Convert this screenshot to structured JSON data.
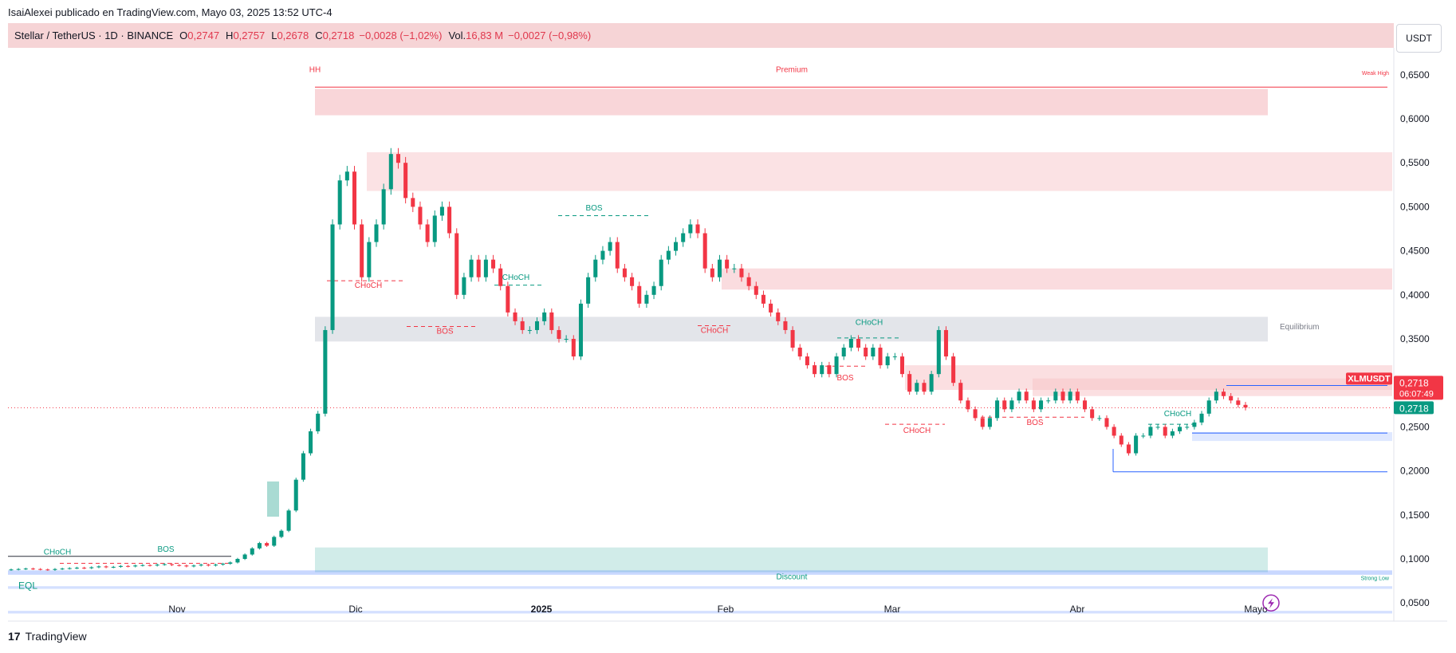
{
  "header": {
    "published": "IsaiAlexei publicado en TradingView.com, Mayo 03, 2025 13:52 UTC-4"
  },
  "legend": {
    "symbol": "Stellar / TetherUS · 1D · BINANCE",
    "o_label": "O",
    "o_value": "0,2747",
    "h_label": "H",
    "h_value": "0,2757",
    "l_label": "L",
    "l_value": "0,2678",
    "c_label": "C",
    "c_value": "0,2718",
    "change": "−0,0028 (−1,02%)",
    "vol_label": "Vol.",
    "vol_value": "16,83 M",
    "vol_change": "−0,0027 (−0,98%)"
  },
  "currency": "USDT",
  "footer": {
    "brand": "TradingView",
    "logo": "17"
  },
  "colors": {
    "up": "#089981",
    "down": "#f23645",
    "premium": "#f7c5c9",
    "discount": "#b2dfdb",
    "equilibrium": "#d1d4dc",
    "line_blue": "#2962ff"
  },
  "chart_data": {
    "type": "candlestick",
    "symbol": "XLMUSDT",
    "x_ticks": [
      "Nov",
      "Dic",
      "2025",
      "Feb",
      "Mar",
      "Abr",
      "Mayo"
    ],
    "y_ticks": [
      "0,0500",
      "0,1000",
      "0,1500",
      "0,2000",
      "0,2500",
      "0,3000",
      "0,3500",
      "0,4000",
      "0,4500",
      "0,5000",
      "0,5500",
      "0,6000",
      "0,6500"
    ],
    "ylim": [
      0.025,
      0.665
    ],
    "last_price": "0,2718",
    "countdown": "06:07:49",
    "price_label": "0,2718",
    "annotations": [
      {
        "text": "HH",
        "color": "#f23645"
      },
      {
        "text": "Premium",
        "color": "#f23645"
      },
      {
        "text": "Weak High",
        "color": "#f23645"
      },
      {
        "text": "Equilibrium",
        "color": "#787b86"
      },
      {
        "text": "Discount",
        "color": "#089981"
      },
      {
        "text": "Strong Low",
        "color": "#089981"
      },
      {
        "text": "EQL",
        "color": "#089981"
      },
      {
        "text": "CHoCH",
        "color": "#089981"
      },
      {
        "text": "BOS",
        "color": "#089981"
      },
      {
        "text": "CHoCH",
        "color": "#f23645"
      },
      {
        "text": "BOS",
        "color": "#f23645"
      },
      {
        "text": "CHoCH",
        "color": "#089981"
      },
      {
        "text": "BOS",
        "color": "#089981"
      },
      {
        "text": "CHoCH",
        "color": "#f23645"
      },
      {
        "text": "BOS",
        "color": "#f23645"
      },
      {
        "text": "CHoCH",
        "color": "#089981"
      },
      {
        "text": "CHoCH",
        "color": "#f23645"
      },
      {
        "text": "BOS",
        "color": "#f23645"
      },
      {
        "text": "CHoCH",
        "color": "#089981"
      }
    ],
    "candles_close": [
      0.088,
      0.0885,
      0.089,
      0.0885,
      0.088,
      0.0875,
      0.0885,
      0.089,
      0.0895,
      0.09,
      0.0895,
      0.0905,
      0.0915,
      0.0905,
      0.091,
      0.092,
      0.0915,
      0.0925,
      0.093,
      0.0925,
      0.0935,
      0.094,
      0.093,
      0.0925,
      0.0915,
      0.0925,
      0.0935,
      0.0925,
      0.0935,
      0.0945,
      0.096,
      0.1,
      0.105,
      0.112,
      0.118,
      0.115,
      0.125,
      0.132,
      0.155,
      0.19,
      0.22,
      0.245,
      0.265,
      0.36,
      0.48,
      0.53,
      0.54,
      0.48,
      0.42,
      0.46,
      0.48,
      0.52,
      0.56,
      0.55,
      0.51,
      0.5,
      0.48,
      0.46,
      0.49,
      0.5,
      0.47,
      0.4,
      0.42,
      0.44,
      0.42,
      0.44,
      0.43,
      0.41,
      0.38,
      0.37,
      0.36,
      0.36,
      0.37,
      0.38,
      0.36,
      0.35,
      0.35,
      0.33,
      0.39,
      0.42,
      0.44,
      0.45,
      0.46,
      0.43,
      0.42,
      0.41,
      0.39,
      0.4,
      0.41,
      0.44,
      0.45,
      0.46,
      0.47,
      0.48,
      0.47,
      0.43,
      0.42,
      0.44,
      0.43,
      0.43,
      0.42,
      0.41,
      0.4,
      0.39,
      0.38,
      0.37,
      0.36,
      0.34,
      0.33,
      0.32,
      0.31,
      0.32,
      0.31,
      0.33,
      0.34,
      0.35,
      0.34,
      0.33,
      0.34,
      0.32,
      0.33,
      0.33,
      0.31,
      0.29,
      0.3,
      0.29,
      0.31,
      0.36,
      0.33,
      0.3,
      0.28,
      0.27,
      0.26,
      0.25,
      0.26,
      0.28,
      0.27,
      0.28,
      0.29,
      0.28,
      0.27,
      0.28,
      0.28,
      0.29,
      0.28,
      0.29,
      0.28,
      0.27,
      0.26,
      0.26,
      0.25,
      0.24,
      0.23,
      0.22,
      0.24,
      0.24,
      0.25,
      0.25,
      0.24,
      0.245,
      0.25,
      0.25,
      0.255,
      0.265,
      0.28,
      0.29,
      0.285,
      0.28,
      0.275,
      0.272
    ]
  }
}
